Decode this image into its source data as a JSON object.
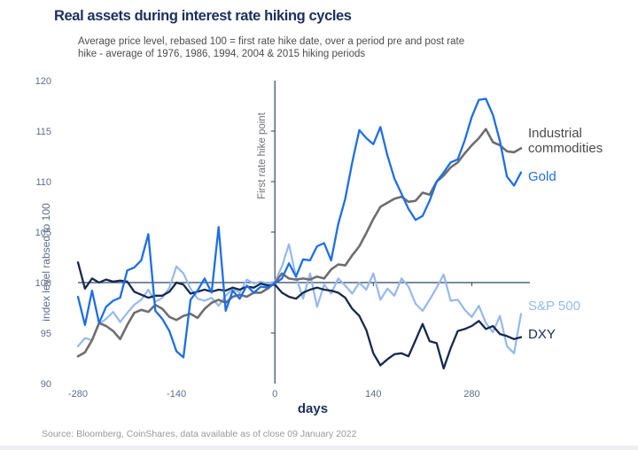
{
  "page": {
    "title": "Real assets during interest rate hiking cycles",
    "subtitle_line1": "Average  price level, rebased 100 = first rate hike date, over a period pre and post rate",
    "subtitle_line2": "hike - average of 1976, 1986, 1994, 2004 & 2015 hiking periods",
    "source": "Source: Bloomberg, CoinShares, data available as of close 09 January 2022"
  },
  "colors": {
    "title": "#1c2f5e",
    "subtitle": "#4c4c4c",
    "axis": "#32415f",
    "tick": "#5f6d89",
    "vline_label": "#6d7076",
    "source": "#999999"
  },
  "chart_data": {
    "type": "line",
    "title": "Real assets during interest rate hiking cycles",
    "xlabel": "days",
    "ylabel": "index level rabsed to 100",
    "vline_annotation": "First rate hike point",
    "baseline": 100,
    "grid": false,
    "legend_position": "right-of-lines",
    "xlim": [
      -280,
      350
    ],
    "ylim": [
      90,
      120
    ],
    "xticks": [
      -280,
      -140,
      0,
      140,
      280
    ],
    "yticks": [
      90,
      95,
      100,
      105,
      110,
      115,
      120
    ],
    "x": [
      -280,
      -270,
      -260,
      -250,
      -240,
      -230,
      -220,
      -210,
      -200,
      -190,
      -180,
      -170,
      -160,
      -150,
      -140,
      -130,
      -120,
      -110,
      -100,
      -90,
      -80,
      -70,
      -60,
      -50,
      -40,
      -30,
      -20,
      -10,
      0,
      10,
      20,
      30,
      40,
      50,
      60,
      70,
      80,
      90,
      100,
      110,
      120,
      130,
      140,
      150,
      160,
      170,
      180,
      190,
      200,
      210,
      220,
      230,
      240,
      250,
      260,
      270,
      280,
      290,
      300,
      310,
      320,
      330,
      340,
      350
    ],
    "series": [
      {
        "name": "S&P 500",
        "color": "#94b9ee",
        "label_color": "#94b9ee",
        "width": 2.2,
        "values": [
          93.7,
          94.5,
          94.3,
          95.9,
          96.4,
          97.1,
          96.1,
          97.0,
          97.8,
          98.3,
          99.3,
          98.1,
          98.5,
          99.5,
          101.6,
          100.9,
          99.4,
          98.4,
          98.2,
          98.5,
          97.7,
          98.7,
          99.4,
          99.0,
          100.3,
          99.9,
          100.1,
          99.9,
          100.1,
          101.6,
          103.8,
          100.6,
          98.4,
          100.9,
          97.6,
          99.8,
          98.9,
          100.4,
          99.7,
          98.9,
          100.0,
          99.3,
          100.9,
          98.3,
          99.4,
          98.7,
          100.4,
          99.6,
          97.9,
          97.2,
          98.3,
          99.5,
          100.8,
          98.2,
          98.3,
          97.3,
          96.6,
          97.7,
          96.0,
          95.1,
          96.7,
          93.7,
          93.0,
          96.9
        ]
      },
      {
        "name": "DXY",
        "color": "#16294d",
        "label_color": "#16294d",
        "width": 2.3,
        "values": [
          102.0,
          99.4,
          100.4,
          100.0,
          100.3,
          100.1,
          100.2,
          100.1,
          99.1,
          98.8,
          98.5,
          98.7,
          98.7,
          99.1,
          100.0,
          99.8,
          98.9,
          99.1,
          99.3,
          99.1,
          99.3,
          99.2,
          99.5,
          99.3,
          99.6,
          99.5,
          99.9,
          99.7,
          99.8,
          99.0,
          98.6,
          98.4,
          99.0,
          99.3,
          99.5,
          99.3,
          99.2,
          99.0,
          98.5,
          97.4,
          96.7,
          95.3,
          93.0,
          91.8,
          92.4,
          92.9,
          93.0,
          92.7,
          94.3,
          95.9,
          94.2,
          94.0,
          91.5,
          93.5,
          95.2,
          95.4,
          95.7,
          96.2,
          95.4,
          95.7,
          94.9,
          94.7,
          94.4,
          94.6
        ]
      },
      {
        "name": "Industrial commodities",
        "color": "#6e6e6e",
        "label_color": "#4a4a4a",
        "width": 2.6,
        "values": [
          92.7,
          93.1,
          94.3,
          96.0,
          95.7,
          95.2,
          94.4,
          95.8,
          97.0,
          97.3,
          97.1,
          97.8,
          97.4,
          96.6,
          96.3,
          96.7,
          96.9,
          96.5,
          97.4,
          98.0,
          98.3,
          98.0,
          98.6,
          98.8,
          98.6,
          99.0,
          99.0,
          99.4,
          100.0,
          100.9,
          100.4,
          100.3,
          100.4,
          100.3,
          100.6,
          100.4,
          101.3,
          101.8,
          101.7,
          102.7,
          103.6,
          104.9,
          106.3,
          107.5,
          107.9,
          108.3,
          108.5,
          108.0,
          108.1,
          108.9,
          108.7,
          110.0,
          110.6,
          111.4,
          111.9,
          112.8,
          113.6,
          114.3,
          115.2,
          113.9,
          113.6,
          113.0,
          112.9,
          113.3
        ]
      },
      {
        "name": "Gold",
        "color": "#1e6ee5",
        "label_color": "#1e6ee5",
        "width": 2.3,
        "values": [
          98.6,
          95.8,
          99.2,
          96.0,
          97.6,
          98.2,
          98.5,
          101.2,
          101.5,
          102.2,
          104.8,
          97.2,
          96.4,
          95.2,
          93.2,
          92.6,
          98.3,
          99.2,
          100.4,
          99.0,
          105.5,
          97.2,
          99.2,
          98.4,
          99.7,
          99.0,
          99.6,
          99.5,
          99.9,
          100.4,
          101.9,
          100.6,
          102.3,
          102.2,
          103.6,
          103.9,
          102.2,
          105.8,
          108.3,
          111.9,
          115.1,
          114.3,
          113.7,
          115.4,
          112.6,
          110.3,
          108.8,
          107.3,
          106.2,
          106.6,
          108.1,
          110.0,
          110.9,
          111.9,
          112.2,
          114.1,
          116.4,
          118.1,
          118.2,
          116.6,
          114.0,
          110.5,
          109.6,
          110.9
        ]
      }
    ]
  }
}
